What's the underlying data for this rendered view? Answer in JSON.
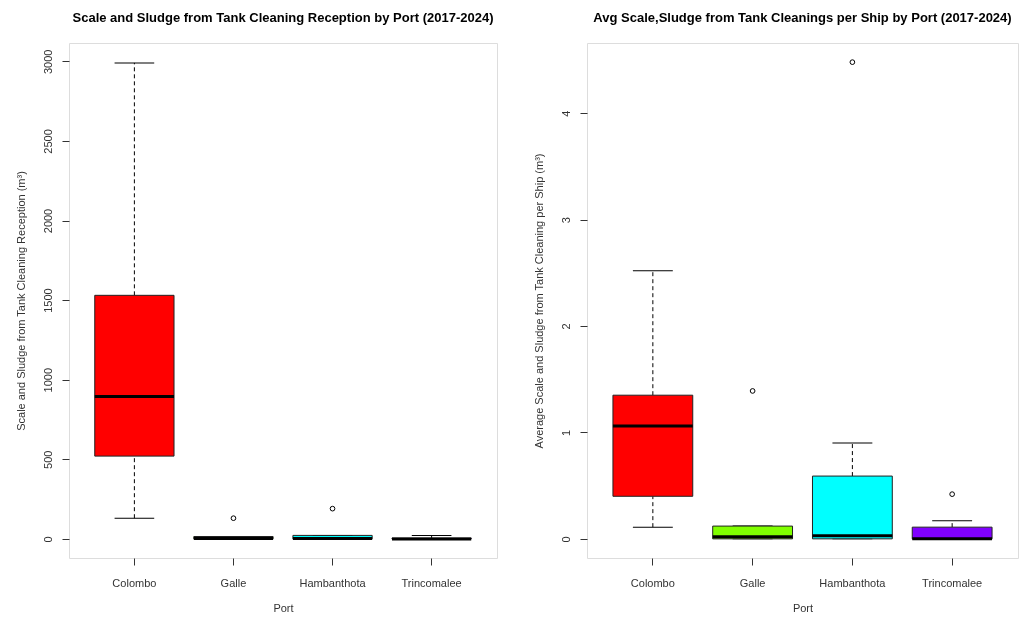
{
  "chart_data": [
    {
      "type": "box",
      "title": "Scale and Sludge from Tank Cleaning Reception by Port (2017-2024)",
      "xlabel": "Port",
      "ylabel": "Scale and Sludge from Tank Cleaning Reception (m³)",
      "categories": [
        "Colombo",
        "Galle",
        "Hambanthota",
        "Trincomalee"
      ],
      "colors": [
        "#ff0000",
        "#80ff00",
        "#00ffff",
        "#8000ff"
      ],
      "boxes": [
        {
          "low": 130,
          "q1": 520,
          "median": 895,
          "q3": 1530,
          "high": 2990
        },
        {
          "low": 0,
          "q1": 0,
          "median": 2,
          "q3": 15,
          "high": 15,
          "outliers": [
            130
          ]
        },
        {
          "low": 0,
          "q1": 0,
          "median": 2,
          "q3": 22,
          "high": 22,
          "outliers": [
            190
          ]
        },
        {
          "low": 0,
          "q1": 0,
          "median": 0,
          "q3": 5,
          "high": 21
        }
      ],
      "ylim": [
        -120,
        3115
      ],
      "yticks": [
        0,
        500,
        1000,
        1500,
        2000,
        2500,
        3000
      ],
      "marker": "circle",
      "line_style": "dashed"
    },
    {
      "type": "box",
      "title": "Avg Scale,Sludge from Tank Cleanings per Ship by Port (2017-2024)",
      "xlabel": "Port",
      "ylabel": "Average Scale and Sludge from Tank Cleaning per Ship (m³)",
      "categories": [
        "Colombo",
        "Galle",
        "Hambanthota",
        "Trincomalee"
      ],
      "colors": [
        "#ff0000",
        "#80ff00",
        "#00ffff",
        "#8000ff"
      ],
      "boxes": [
        {
          "low": 0.11,
          "q1": 0.4,
          "median": 1.06,
          "q3": 1.35,
          "high": 2.52
        },
        {
          "low": 0,
          "q1": 0,
          "median": 0.02,
          "q3": 0.12,
          "high": 0.12,
          "outliers": [
            1.39
          ]
        },
        {
          "low": 0,
          "q1": 0,
          "median": 0.03,
          "q3": 0.59,
          "high": 0.9,
          "outliers": [
            4.48
          ]
        },
        {
          "low": 0,
          "q1": 0,
          "median": 0,
          "q3": 0.11,
          "high": 0.17,
          "outliers": [
            0.42
          ]
        }
      ],
      "ylim": [
        -0.18,
        4.66
      ],
      "yticks": [
        0,
        1,
        2,
        3,
        4
      ],
      "marker": "circle",
      "line_style": "dashed"
    }
  ]
}
